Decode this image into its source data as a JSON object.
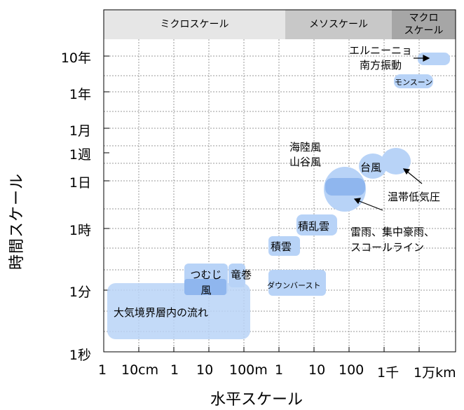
{
  "chart_data": {
    "type": "diagram",
    "ylabel": "時間スケール",
    "xlabel": "水平スケール",
    "y_ticks": [
      "10年",
      "1年",
      "1月",
      "1週",
      "1日",
      "1時",
      "1分",
      "1秒"
    ],
    "x_ticks": [
      "1",
      "10cm",
      "1",
      "10",
      "100m",
      "1",
      "10",
      "100",
      "1千",
      "1万km"
    ],
    "scale_bands": [
      {
        "label": "ミクロスケール"
      },
      {
        "label": "メソスケール"
      },
      {
        "label": "マクロ\nスケール"
      }
    ],
    "phenomena": [
      {
        "label": "大気境界層内の流れ"
      },
      {
        "label": "つむじ\n風"
      },
      {
        "label": "竜巻"
      },
      {
        "label": "ダウンバースト"
      },
      {
        "label": "積雲"
      },
      {
        "label": "積乱雲"
      },
      {
        "label": "海陸風\n山谷風"
      },
      {
        "label": "雷雨、集中豪雨、\nスコールライン"
      },
      {
        "label": "台風"
      },
      {
        "label": "温帯低気圧"
      },
      {
        "label": "モンスーン"
      },
      {
        "label": "エルニーニョ\n南方振動"
      }
    ],
    "colors": {
      "band_micro": "#e6e6e6",
      "band_meso": "#c8c8c8",
      "band_macro": "#a6a6a6",
      "region": "#b8d3f7",
      "region_dark": "#8fb6ee"
    }
  }
}
